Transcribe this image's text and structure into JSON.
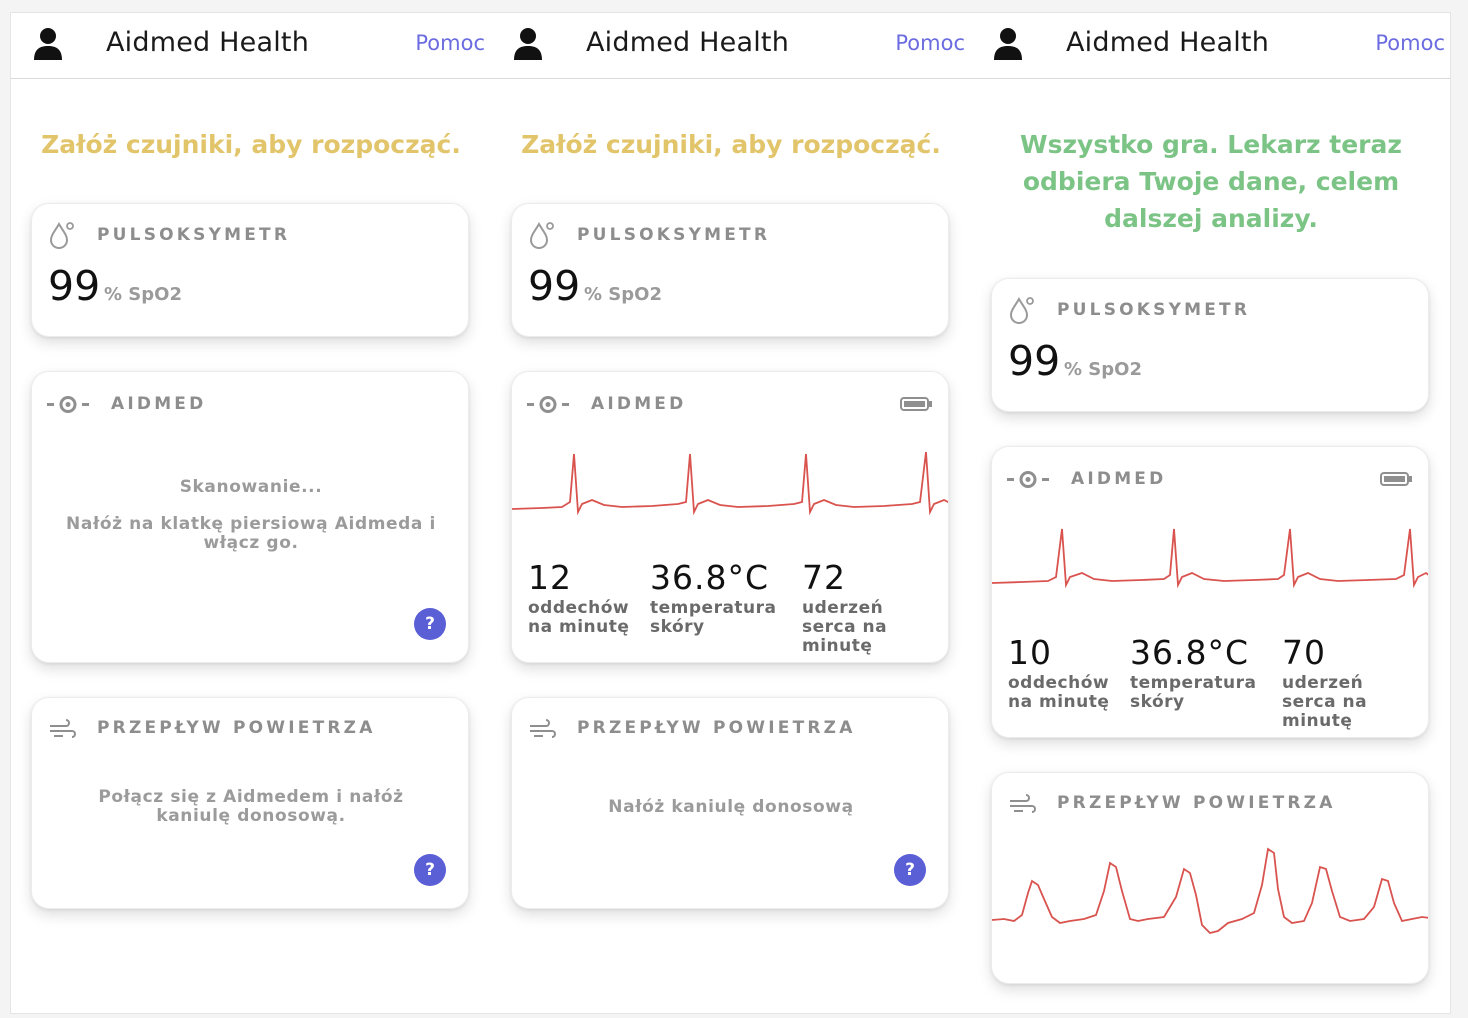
{
  "app": {
    "title": "Aidmed Health",
    "help_link": "Pomoc"
  },
  "colors": {
    "warn": "#e2c56a",
    "ok": "#7bc485",
    "accent": "#5a5fd6",
    "trace": "#d9534f"
  },
  "screens": [
    {
      "status": "Załóż czujniki, aby rozpocząć.",
      "pulse": {
        "label": "PULSOKSYMETR",
        "value": "99",
        "unit": "% SpO2"
      },
      "aidmed": {
        "label": "AIDMED",
        "scanning": "Skanowanie...",
        "instruction": "Nałóż na klatkę piersiową Aidmeda i włącz go.",
        "help": "?"
      },
      "airflow": {
        "label": "PRZEPŁYW POWIETRZA",
        "message": "Połącz się z Aidmedem i nałóż kaniulę donosową.",
        "help": "?"
      }
    },
    {
      "status": "Załóż czujniki, aby rozpocząć.",
      "pulse": {
        "label": "PULSOKSYMETR",
        "value": "99",
        "unit": "% SpO2"
      },
      "aidmed": {
        "label": "AIDMED",
        "stats": [
          {
            "value": "12",
            "label": "oddechów na minutę"
          },
          {
            "value": "36.8°C",
            "label": "temperatura skóry"
          },
          {
            "value": "72",
            "label": "uderzeń serca na minutę"
          }
        ]
      },
      "airflow": {
        "label": "PRZEPŁYW POWIETRZA",
        "message": "Nałóż kaniulę donosową",
        "help": "?"
      }
    },
    {
      "status": "Wszystko gra. Lekarz teraz odbiera Twoje dane, celem dalszej analizy.",
      "pulse": {
        "label": "PULSOKSYMETR",
        "value": "99",
        "unit": "% SpO2"
      },
      "aidmed": {
        "label": "AIDMED",
        "stats": [
          {
            "value": "10",
            "label": "oddechów na minutę"
          },
          {
            "value": "36.8°C",
            "label": "temperatura skóry"
          },
          {
            "value": "70",
            "label": "uderzeń serca na minutę"
          }
        ]
      },
      "airflow": {
        "label": "PRZEPŁYW POWIETRZA"
      }
    }
  ]
}
